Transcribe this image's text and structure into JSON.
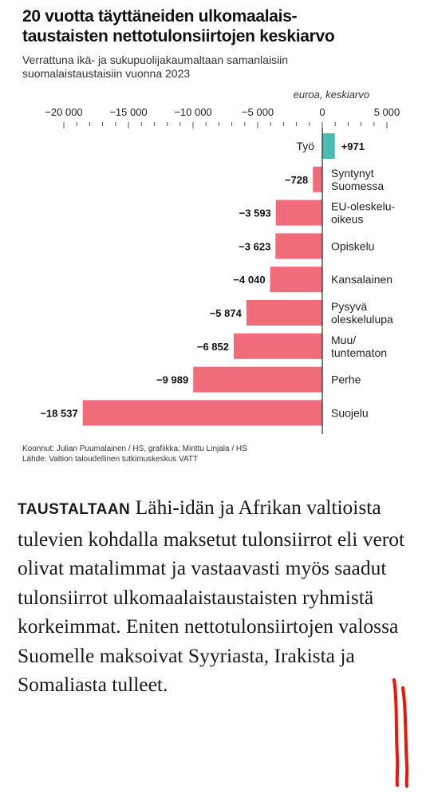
{
  "header": {
    "title_line1": "20 vuotta täyttäneiden ulkomaalais-",
    "title_line2": "taustaisten nettotulonsiirtojen keskiarvo",
    "subtitle_line1": "Verrattuna ikä- ja sukupuolijakaumaltaan samanlaisiin",
    "subtitle_line2": "suomalaistaustaisiin vuonna 2023"
  },
  "chart_data": {
    "type": "bar",
    "orientation": "horizontal",
    "unit_label": "euroa, keskiarvo",
    "xlim": [
      -20000,
      5000
    ],
    "ticks": [
      -20000,
      -15000,
      -10000,
      -5000,
      0,
      5000
    ],
    "tick_labels": [
      "−20 000",
      "−15 000",
      "−10 000",
      "−5 000",
      "0",
      "5 000"
    ],
    "categories": [
      [
        "Työ"
      ],
      [
        "Syntynyt",
        "Suomessa"
      ],
      [
        "EU-oleskelu-",
        "oikeus"
      ],
      [
        "Opiskelu"
      ],
      [
        "Kansalainen"
      ],
      [
        "Pysyvä",
        "oleskelulupa"
      ],
      [
        "Muu/",
        "tuntematon"
      ],
      [
        "Perhe"
      ],
      [
        "Suojelu"
      ]
    ],
    "values": [
      971,
      -728,
      -3593,
      -3623,
      -4040,
      -5874,
      -6852,
      -9989,
      -18537
    ],
    "value_labels": [
      "+971",
      "−728",
      "−3 593",
      "−3 623",
      "−4 040",
      "−5 874",
      "−6 852",
      "−9 989",
      "−18 537"
    ],
    "colors": {
      "positive": "#4bbcb4",
      "negative": "#f06c7b",
      "axis": "#222222",
      "tick": "#555555"
    },
    "grid": false,
    "legend": "none"
  },
  "credits": {
    "line1": "Koonnut: Julian Puumalainen / HS, grafiikka: Minttu Linjala / HS",
    "line2": "Lähde: Valtion taloudellinen tutkimuskeskus VATT"
  },
  "article": {
    "lead": "TAUSTALTAAN",
    "text": "Lähi-idän ja Afrikan valtioista tulevien kohdalla maksetut tulonsiirrot eli verot olivat matalimmat ja vastaavasti myös saadut tulonsiirrot ulkomaalaistaustaisten ryhmistä korkeimmat. Eniten nettotulonsiirtojen valossa Suomelle maksoivat Syyriasta, Irakista ja Somaliasta tulleet."
  },
  "annotation": {
    "color": "#e8160c"
  }
}
